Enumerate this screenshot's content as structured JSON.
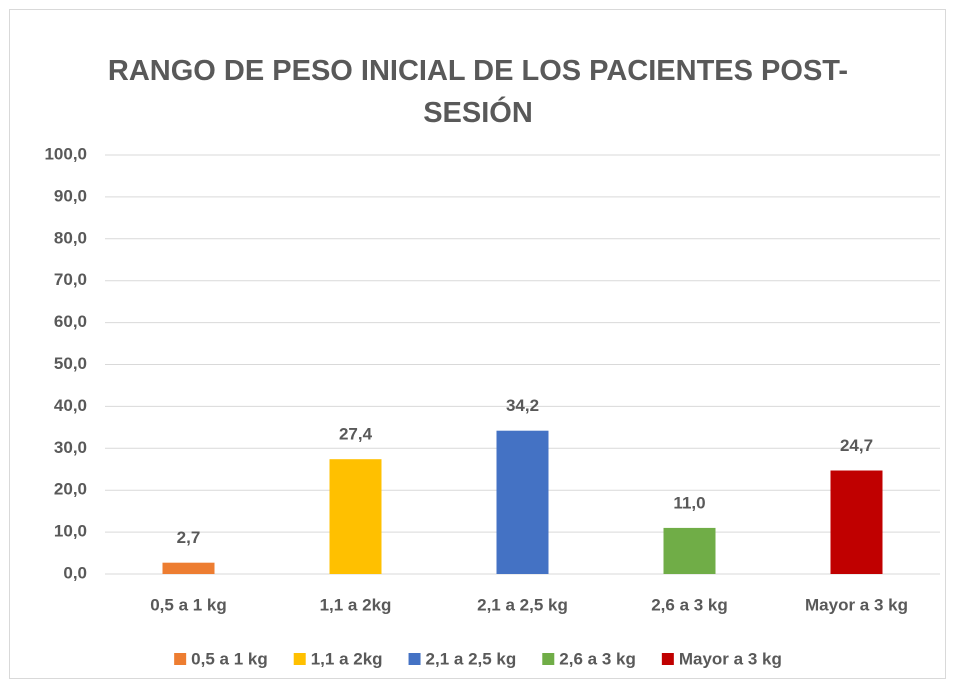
{
  "chart_data": {
    "type": "bar",
    "title": "RANGO DE PESO INICIAL DE LOS PACIENTES POST-SESIÓN",
    "categories": [
      "0,5 a 1 kg",
      "1,1 a 2kg",
      "2,1 a 2,5 kg",
      "2,6 a 3 kg",
      "Mayor a 3 kg"
    ],
    "values": [
      2.7,
      27.4,
      34.2,
      11.0,
      24.7
    ],
    "value_labels": [
      "2,7",
      "27,4",
      "34,2",
      "11,0",
      "24,7"
    ],
    "colors": [
      "#ed7d31",
      "#ffc000",
      "#4472c4",
      "#70ad47",
      "#c00000"
    ],
    "ylim": [
      0,
      100
    ],
    "yticks": [
      {
        "value": 0,
        "label": "0,0"
      },
      {
        "value": 10,
        "label": "10,0"
      },
      {
        "value": 20,
        "label": "20,0"
      },
      {
        "value": 30,
        "label": "30,0"
      },
      {
        "value": 40,
        "label": "40,0"
      },
      {
        "value": 50,
        "label": "50,0"
      },
      {
        "value": 60,
        "label": "60,0"
      },
      {
        "value": 70,
        "label": "70,0"
      },
      {
        "value": 80,
        "label": "80,0"
      },
      {
        "value": 90,
        "label": "90,0"
      },
      {
        "value": 100,
        "label": "100,0"
      }
    ],
    "grid": true,
    "legend": "bottom"
  }
}
